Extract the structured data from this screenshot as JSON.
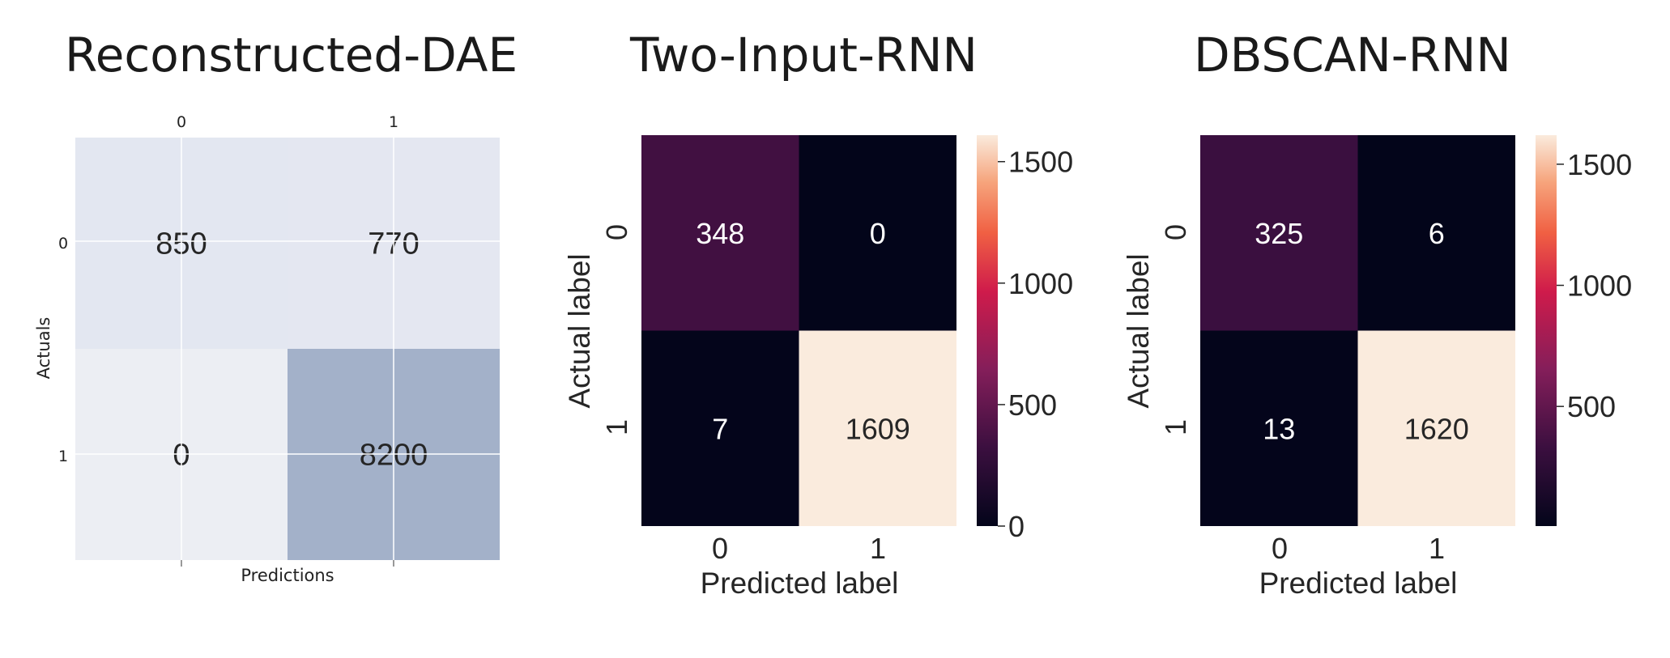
{
  "chart_data": [
    {
      "type": "heatmap",
      "title": "Reconstructed-DAE",
      "xlabel": "Predictions",
      "ylabel": "Actuals",
      "x_ticks": [
        "0",
        "1"
      ],
      "y_ticks": [
        "0",
        "1"
      ],
      "x_tick_position": "top",
      "grid": true,
      "colorbar": false,
      "colormap": "blues",
      "matrix": [
        [
          850,
          770
        ],
        [
          0,
          8200
        ]
      ],
      "cell_labels": [
        [
          "850",
          "770"
        ],
        [
          "0",
          "8200"
        ]
      ]
    },
    {
      "type": "heatmap",
      "title": "Two-Input-RNN",
      "xlabel": "Predicted label",
      "ylabel": "Actual label",
      "x_ticks": [
        "0",
        "1"
      ],
      "y_ticks": [
        "0",
        "1"
      ],
      "x_tick_position": "bottom",
      "grid": false,
      "colorbar": true,
      "colormap": "rocket",
      "colorbar_ticks": [
        "0",
        "500",
        "1000",
        "1500"
      ],
      "colorbar_range": [
        0,
        1609
      ],
      "matrix": [
        [
          348,
          0
        ],
        [
          7,
          1609
        ]
      ],
      "cell_labels": [
        [
          "348",
          "0"
        ],
        [
          "7",
          "1609"
        ]
      ]
    },
    {
      "type": "heatmap",
      "title": "DBSCAN-RNN",
      "xlabel": "Predicted label",
      "ylabel": "Actual label",
      "x_ticks": [
        "0",
        "1"
      ],
      "y_ticks": [
        "0",
        "1"
      ],
      "x_tick_position": "bottom",
      "grid": false,
      "colorbar": true,
      "colormap": "rocket",
      "colorbar_ticks": [
        "500",
        "1000",
        "1500"
      ],
      "colorbar_range": [
        6,
        1620
      ],
      "matrix": [
        [
          325,
          6
        ],
        [
          13,
          1620
        ]
      ],
      "cell_labels": [
        [
          "325",
          "6"
        ],
        [
          "13",
          "1620"
        ]
      ]
    }
  ]
}
